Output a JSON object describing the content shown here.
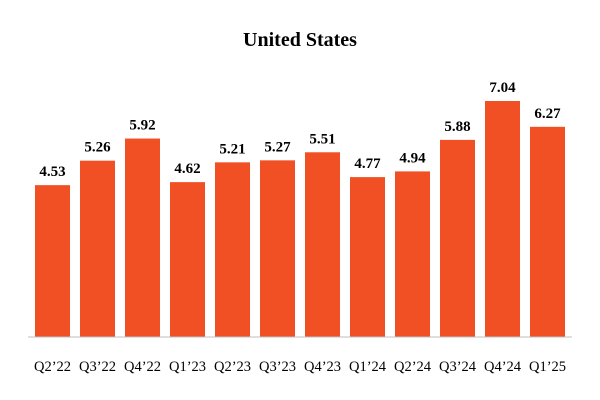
{
  "chart_data": {
    "type": "bar",
    "title": "United States",
    "xlabel": "",
    "ylabel": "",
    "categories": [
      "Q2’22",
      "Q3’22",
      "Q4’22",
      "Q1’23",
      "Q2’23",
      "Q3’23",
      "Q4’23",
      "Q1’24",
      "Q2’24",
      "Q3’24",
      "Q4’24",
      "Q1’25"
    ],
    "values": [
      4.53,
      5.26,
      5.92,
      4.62,
      5.21,
      5.27,
      5.51,
      4.77,
      4.94,
      5.88,
      7.04,
      6.27
    ],
    "value_labels": [
      "4.53",
      "5.26",
      "5.92",
      "4.62",
      "5.21",
      "5.27",
      "5.51",
      "4.77",
      "4.94",
      "5.88",
      "7.04",
      "6.27"
    ],
    "ylim": [
      0,
      7.04
    ],
    "grid": false,
    "legend": "none",
    "bar_color": "#F05023",
    "axis_color": "#BFBFBF"
  }
}
